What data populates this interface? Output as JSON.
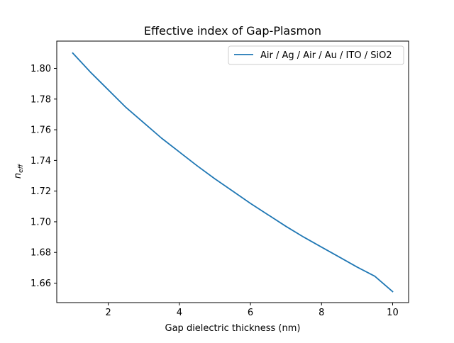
{
  "chart_data": {
    "type": "line",
    "title": "Effective index of Gap-Plasmon",
    "xlabel": "Gap dielectric thickness (nm)",
    "ylabel_main": "n",
    "ylabel_sub": "eff",
    "xlim": [
      0.55,
      10.45
    ],
    "ylim": [
      1.6473,
      1.8178
    ],
    "xticks": [
      2,
      4,
      6,
      8,
      10
    ],
    "yticks": [
      1.66,
      1.68,
      1.7,
      1.72,
      1.74,
      1.76,
      1.78,
      1.8
    ],
    "ytick_labels": [
      "1.66",
      "1.68",
      "1.70",
      "1.72",
      "1.74",
      "1.76",
      "1.78",
      "1.80"
    ],
    "grid": false,
    "legend": "upper-right",
    "series": [
      {
        "name": "Air / Ag / Air / Au / ITO / SiO2",
        "color": "#1f77b4",
        "x": [
          1,
          1.5,
          2,
          2.5,
          3,
          3.5,
          4,
          4.5,
          5,
          5.5,
          6,
          6.5,
          7,
          7.5,
          8,
          8.5,
          9,
          9.5,
          10
        ],
        "y": [
          1.81,
          1.7975,
          1.786,
          1.7745,
          1.7645,
          1.7545,
          1.7455,
          1.7365,
          1.728,
          1.72,
          1.712,
          1.7045,
          1.697,
          1.69,
          1.6835,
          1.677,
          1.6705,
          1.6645,
          1.6545
        ]
      }
    ]
  }
}
